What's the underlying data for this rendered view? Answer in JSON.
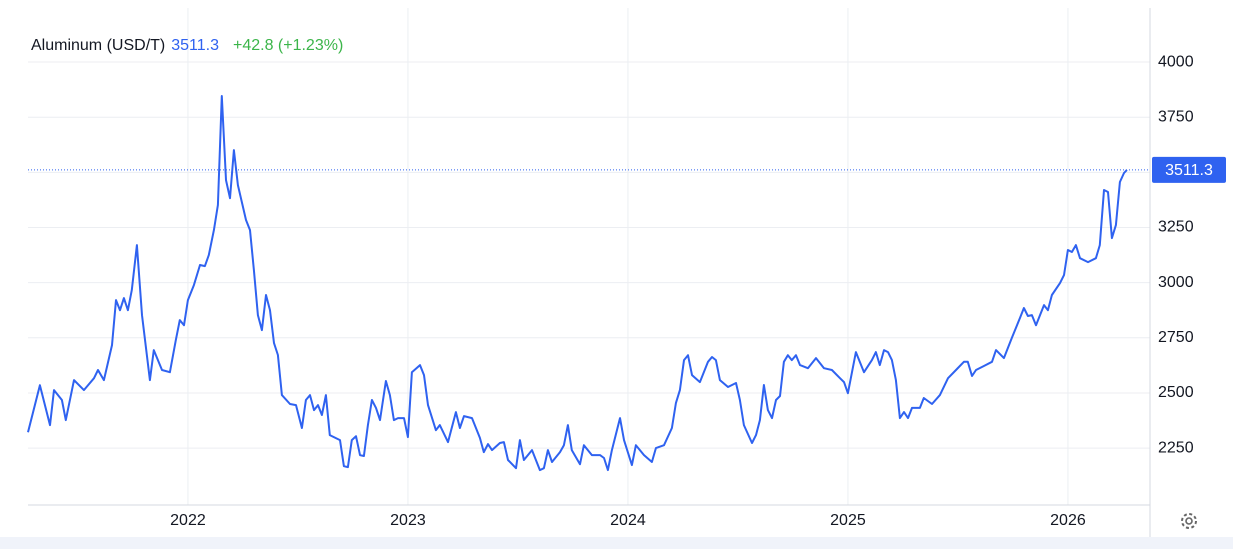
{
  "chart_data": {
    "type": "line",
    "title": "Aluminum (USD/T)",
    "last": 3511.3,
    "change_label": "+42.8 (+1.23%)",
    "x": [
      2021.273,
      2021.327,
      2021.373,
      2021.391,
      2021.427,
      2021.445,
      2021.482,
      2021.527,
      2021.573,
      2021.591,
      2021.618,
      2021.655,
      2021.673,
      2021.691,
      2021.709,
      2021.727,
      2021.745,
      2021.768,
      2021.791,
      2021.827,
      2021.845,
      2021.882,
      2021.918,
      2021.945,
      2021.963,
      2021.982,
      2022.0,
      2022.027,
      2022.055,
      2022.077,
      2022.095,
      2022.118,
      2022.136,
      2022.154,
      2022.173,
      2022.191,
      2022.209,
      2022.227,
      2022.264,
      2022.282,
      2022.3,
      2022.318,
      2022.336,
      2022.355,
      2022.373,
      2022.391,
      2022.409,
      2022.427,
      2022.464,
      2022.491,
      2022.518,
      2022.536,
      2022.555,
      2022.573,
      2022.591,
      2022.609,
      2022.627,
      2022.645,
      2022.691,
      2022.709,
      2022.727,
      2022.745,
      2022.764,
      2022.782,
      2022.8,
      2022.818,
      2022.836,
      2022.855,
      2022.873,
      2022.9,
      2022.918,
      2022.936,
      2022.955,
      2022.982,
      2023.0,
      2023.018,
      2023.055,
      2023.073,
      2023.091,
      2023.127,
      2023.145,
      2023.182,
      2023.218,
      2023.236,
      2023.255,
      2023.291,
      2023.327,
      2023.345,
      2023.364,
      2023.382,
      2023.418,
      2023.436,
      2023.455,
      2023.491,
      2023.509,
      2023.527,
      2023.564,
      2023.6,
      2023.618,
      2023.636,
      2023.655,
      2023.691,
      2023.709,
      2023.727,
      2023.745,
      2023.782,
      2023.8,
      2023.836,
      2023.873,
      2023.891,
      2023.909,
      2023.927,
      2023.964,
      2023.982,
      2024.018,
      2024.036,
      2024.073,
      2024.109,
      2024.127,
      2024.164,
      2024.2,
      2024.218,
      2024.236,
      2024.255,
      2024.273,
      2024.291,
      2024.327,
      2024.364,
      2024.382,
      2024.4,
      2024.418,
      2024.455,
      2024.491,
      2024.509,
      2024.527,
      2024.564,
      2024.582,
      2024.6,
      2024.618,
      2024.636,
      2024.655,
      2024.673,
      2024.691,
      2024.709,
      2024.727,
      2024.745,
      2024.764,
      2024.782,
      2024.818,
      2024.855,
      2024.891,
      2024.927,
      2024.964,
      2024.982,
      2025.0,
      2025.036,
      2025.073,
      2025.109,
      2025.127,
      2025.145,
      2025.164,
      2025.182,
      2025.2,
      2025.218,
      2025.236,
      2025.255,
      2025.273,
      2025.291,
      2025.327,
      2025.345,
      2025.382,
      2025.418,
      2025.455,
      2025.491,
      2025.527,
      2025.545,
      2025.564,
      2025.582,
      2025.618,
      2025.655,
      2025.673,
      2025.709,
      2025.745,
      2025.782,
      2025.8,
      2025.818,
      2025.836,
      2025.855,
      2025.891,
      2025.909,
      2025.927,
      2025.964,
      2025.982,
      2026.0,
      2026.018,
      2026.036,
      2026.055,
      2026.091,
      2026.127,
      2026.145,
      2026.164,
      2026.182,
      2026.2,
      2026.218,
      2026.236,
      2026.255,
      2026.268
    ],
    "series": [
      {
        "name": "Aluminum (USD/T)",
        "color": "#2f62f0",
        "values": [
          2322,
          2535,
          2354,
          2513,
          2468,
          2377,
          2558,
          2513,
          2567,
          2604,
          2558,
          2717,
          2921,
          2875,
          2930,
          2875,
          2966,
          3170,
          2853,
          2558,
          2694,
          2604,
          2594,
          2739,
          2830,
          2807,
          2921,
          2989,
          3080,
          3075,
          3125,
          3238,
          3352,
          3846,
          3465,
          3383,
          3601,
          3442,
          3284,
          3238,
          3057,
          2853,
          2785,
          2944,
          2875,
          2726,
          2672,
          2490,
          2450,
          2445,
          2341,
          2468,
          2490,
          2422,
          2445,
          2400,
          2490,
          2309,
          2286,
          2168,
          2164,
          2286,
          2304,
          2218,
          2214,
          2354,
          2468,
          2432,
          2377,
          2554,
          2490,
          2377,
          2386,
          2386,
          2300,
          2594,
          2626,
          2581,
          2445,
          2331,
          2354,
          2277,
          2413,
          2341,
          2395,
          2386,
          2296,
          2232,
          2268,
          2241,
          2273,
          2277,
          2196,
          2159,
          2286,
          2196,
          2241,
          2150,
          2159,
          2241,
          2187,
          2232,
          2263,
          2354,
          2241,
          2177,
          2263,
          2218,
          2218,
          2205,
          2150,
          2241,
          2386,
          2286,
          2173,
          2263,
          2218,
          2187,
          2250,
          2263,
          2341,
          2454,
          2513,
          2649,
          2671,
          2581,
          2549,
          2641,
          2663,
          2649,
          2558,
          2527,
          2545,
          2468,
          2354,
          2273,
          2309,
          2377,
          2536,
          2422,
          2386,
          2468,
          2486,
          2641,
          2671,
          2649,
          2671,
          2626,
          2612,
          2658,
          2612,
          2604,
          2567,
          2549,
          2499,
          2685,
          2594,
          2649,
          2685,
          2626,
          2694,
          2685,
          2649,
          2558,
          2386,
          2413,
          2386,
          2432,
          2432,
          2477,
          2450,
          2490,
          2567,
          2604,
          2641,
          2641,
          2577,
          2604,
          2622,
          2641,
          2694,
          2658,
          2749,
          2840,
          2885,
          2849,
          2853,
          2807,
          2898,
          2875,
          2944,
          2998,
          3034,
          3148,
          3139,
          3170,
          3111,
          3093,
          3111,
          3170,
          3420,
          3411,
          3202,
          3261,
          3456,
          3497,
          3511.3
        ]
      }
    ],
    "xlim": [
      2021.273,
      2026.373
    ],
    "xticks": [
      2022,
      2023,
      2024,
      2025,
      2026
    ],
    "ylim": [
      1992,
      4245
    ],
    "yticks": [
      2250,
      2500,
      2750,
      3000,
      3250,
      3500,
      3750,
      4000
    ],
    "grid": true
  }
}
